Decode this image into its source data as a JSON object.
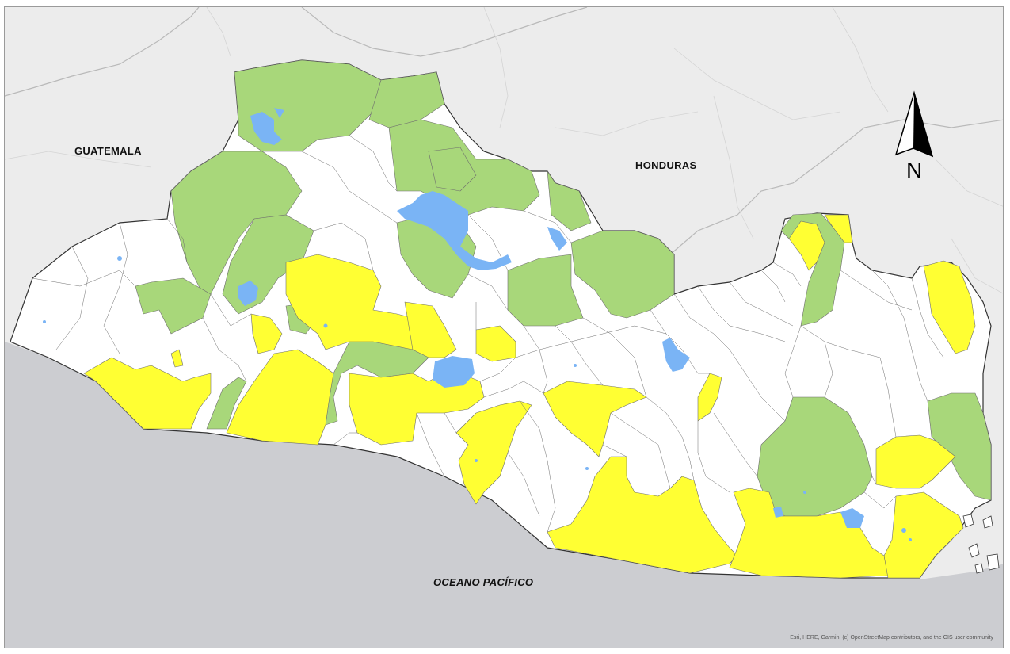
{
  "map": {
    "labels": {
      "guatemala": "GUATEMALA",
      "honduras": "HONDURAS",
      "ocean": "OCEANO PACÍFICO"
    },
    "north_arrow": "N",
    "attribution": "Esri, HERE, Garmin, (c) OpenStreetMap contributors, and the GIS user community",
    "colors": {
      "background_land": "#ececec",
      "ocean": "#cccdd1",
      "municipality_default": "#ffffff",
      "municipality_yellow": "#ffff33",
      "municipality_green": "#a8d77a",
      "water_body": "#7ab4f5",
      "boundary": "#6e6e6e",
      "country_outline": "#333333"
    },
    "icons": {
      "north_arrow": "north-arrow-icon"
    }
  }
}
